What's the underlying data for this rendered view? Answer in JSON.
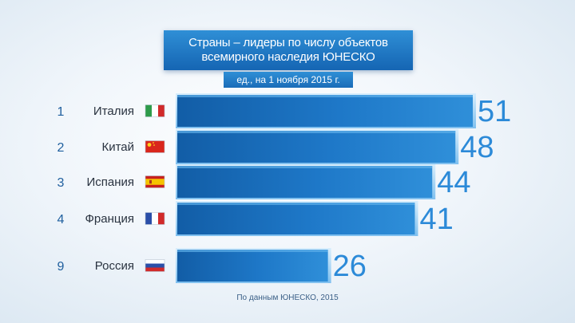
{
  "chart_data": {
    "type": "bar",
    "orientation": "horizontal",
    "title_lines": [
      "Страны – лидеры по числу объектов",
      "всемирного наследия ЮНЕСКО"
    ],
    "subtitle": "ед., на 1 ноября 2015 г.",
    "source": "По данным ЮНЕСКО, 2015",
    "rows": [
      {
        "rank": "1",
        "country": "Италия",
        "flag": "italy-flag-icon",
        "value": 51
      },
      {
        "rank": "2",
        "country": "Китай",
        "flag": "china-flag-icon",
        "value": 48
      },
      {
        "rank": "3",
        "country": "Испания",
        "flag": "spain-flag-icon",
        "value": 44
      },
      {
        "rank": "4",
        "country": "Франция",
        "flag": "france-flag-icon",
        "value": 41
      },
      {
        "rank": "9",
        "country": "Россия",
        "flag": "russia-flag-icon",
        "value": 26
      }
    ],
    "xlim": [
      0,
      51
    ],
    "colors": {
      "bar": "#1e78c8",
      "bar_dark": "#125da6",
      "bar_light": "#4fa6e6",
      "value": "#2c8ad8"
    }
  }
}
